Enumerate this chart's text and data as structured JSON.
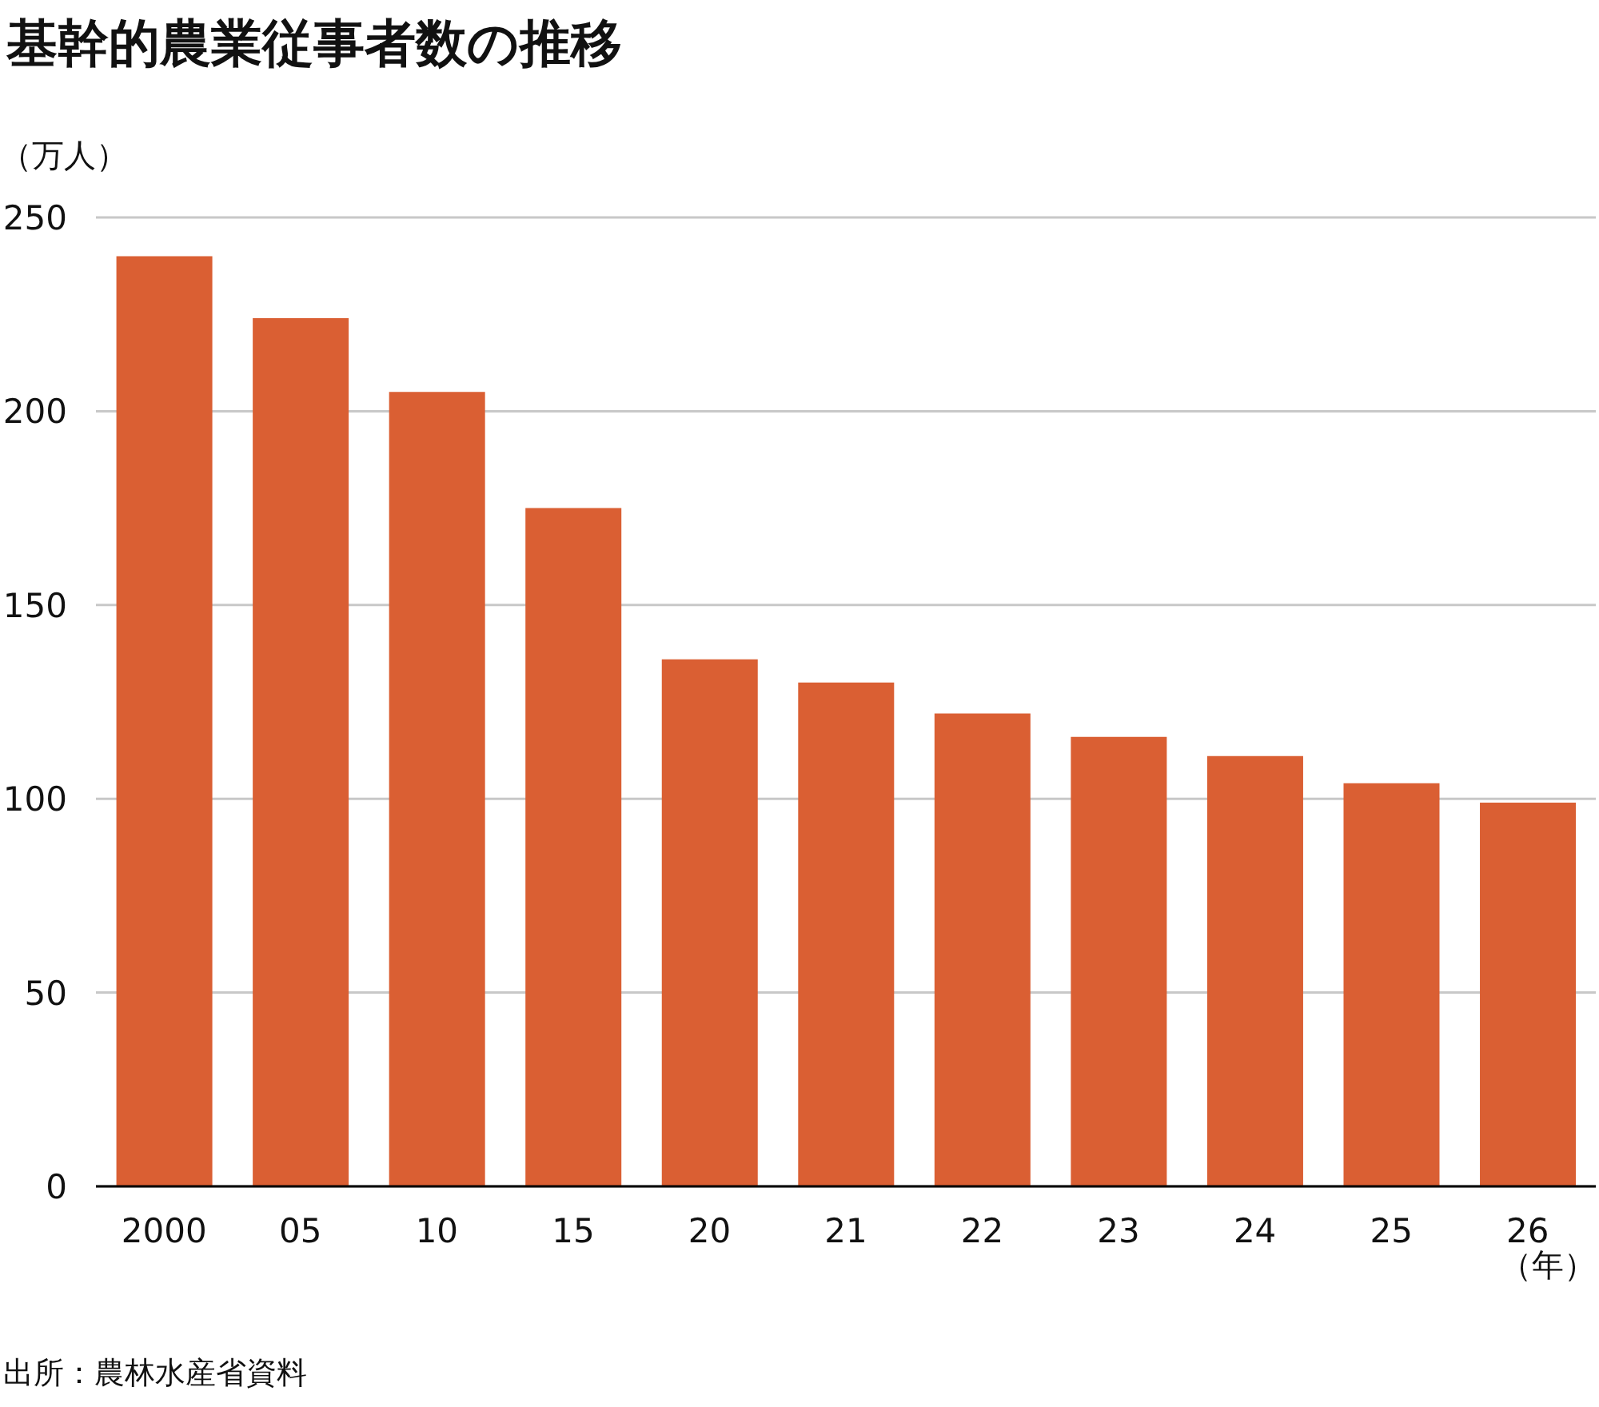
{
  "chart_data": {
    "type": "bar",
    "title": "基幹的農業従事者数の推移",
    "ylabel": "（万人）",
    "xlabel": "（年）",
    "categories": [
      "2000",
      "05",
      "10",
      "15",
      "20",
      "21",
      "22",
      "23",
      "24",
      "25",
      "26"
    ],
    "values": [
      240,
      224,
      205,
      175,
      136,
      130,
      122,
      116,
      111,
      104,
      99
    ],
    "color": "#da5f33",
    "ylim": [
      0,
      250
    ],
    "yticks": [
      0,
      50,
      100,
      150,
      200,
      250
    ],
    "grid": "y",
    "annotations": [
      "出所：農林水産省資料"
    ]
  }
}
